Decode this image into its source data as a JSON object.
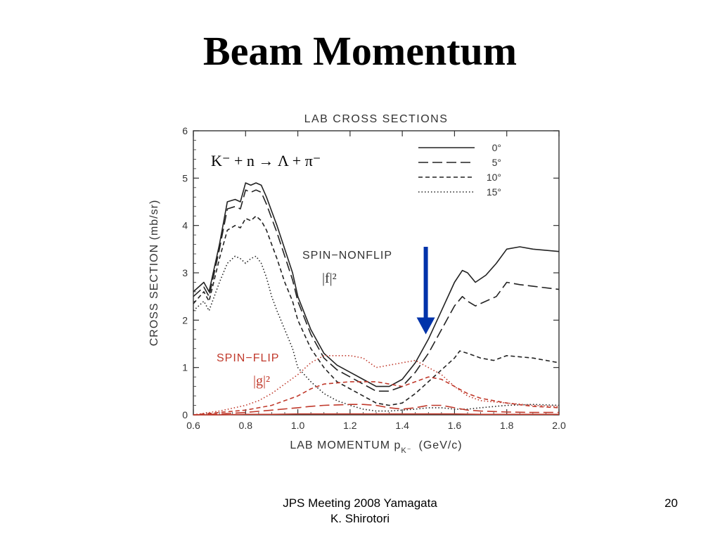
{
  "slide": {
    "title": "Beam Momentum",
    "footer_line1": "JPS Meeting 2008 Yamagata",
    "footer_line2": "K. Shirotori",
    "page_number": "20"
  },
  "chart_data": {
    "type": "line",
    "title": "LAB CROSS SECTIONS",
    "reaction": "K⁻ + n → Λ + π⁻",
    "xlabel": "LAB MOMENTUM p",
    "xlabel_sub": "K⁻",
    "xlabel_unit": "(GeV/c)",
    "ylabel": "CROSS SECTION (mb/sr)",
    "xlim": [
      0.6,
      2.0
    ],
    "ylim": [
      0,
      6
    ],
    "xticks": [
      0.6,
      0.8,
      1.0,
      1.2,
      1.4,
      1.6,
      1.8,
      2.0
    ],
    "yticks": [
      0,
      1,
      2,
      3,
      4,
      5,
      6
    ],
    "legend_position": "top-right",
    "legend": [
      "0°",
      "5°",
      "10°",
      "15°"
    ],
    "group_labels": {
      "nonflip": "SPIN−NONFLIP",
      "nonflip_sym": "|f|²",
      "flip": "SPIN−FLIP",
      "flip_sym": "|g|²"
    },
    "marker": {
      "x": 1.49,
      "y_from": 3.55,
      "y_to": 1.7,
      "color": "#0033aa"
    },
    "colors": {
      "nonflip": "#222222",
      "flip": "#c0392b"
    },
    "series": [
      {
        "name": "0°",
        "group": "nonflip",
        "dash": "solid",
        "x": [
          0.6,
          0.64,
          0.66,
          0.7,
          0.73,
          0.76,
          0.78,
          0.8,
          0.82,
          0.84,
          0.86,
          0.88,
          0.9,
          0.92,
          0.95,
          0.98,
          1.0,
          1.05,
          1.1,
          1.15,
          1.2,
          1.25,
          1.3,
          1.35,
          1.4,
          1.45,
          1.5,
          1.55,
          1.6,
          1.63,
          1.65,
          1.68,
          1.72,
          1.76,
          1.8,
          1.85,
          1.9,
          2.0
        ],
        "y": [
          2.6,
          2.8,
          2.6,
          3.6,
          4.5,
          4.55,
          4.5,
          4.9,
          4.85,
          4.9,
          4.85,
          4.6,
          4.3,
          4.0,
          3.5,
          3.0,
          2.5,
          1.8,
          1.3,
          1.05,
          0.9,
          0.75,
          0.6,
          0.6,
          0.75,
          1.1,
          1.6,
          2.2,
          2.8,
          3.05,
          3.0,
          2.8,
          2.95,
          3.2,
          3.5,
          3.55,
          3.5,
          3.45
        ]
      },
      {
        "name": "5°",
        "group": "nonflip",
        "dash": "long",
        "x": [
          0.6,
          0.64,
          0.66,
          0.7,
          0.73,
          0.76,
          0.78,
          0.8,
          0.82,
          0.84,
          0.86,
          0.88,
          0.9,
          0.92,
          0.95,
          0.98,
          1.0,
          1.05,
          1.1,
          1.15,
          1.2,
          1.25,
          1.3,
          1.35,
          1.4,
          1.45,
          1.5,
          1.55,
          1.6,
          1.63,
          1.65,
          1.68,
          1.72,
          1.76,
          1.8,
          1.85,
          2.0
        ],
        "y": [
          2.5,
          2.7,
          2.5,
          3.5,
          4.35,
          4.4,
          4.35,
          4.75,
          4.7,
          4.75,
          4.7,
          4.45,
          4.15,
          3.85,
          3.35,
          2.85,
          2.4,
          1.7,
          1.2,
          0.95,
          0.8,
          0.65,
          0.5,
          0.5,
          0.6,
          0.9,
          1.3,
          1.8,
          2.3,
          2.5,
          2.4,
          2.3,
          2.4,
          2.5,
          2.8,
          2.75,
          2.65
        ]
      },
      {
        "name": "10°",
        "group": "nonflip",
        "dash": "medium",
        "x": [
          0.6,
          0.64,
          0.66,
          0.7,
          0.73,
          0.76,
          0.78,
          0.8,
          0.82,
          0.84,
          0.86,
          0.88,
          0.9,
          0.92,
          0.95,
          0.98,
          1.0,
          1.05,
          1.1,
          1.15,
          1.2,
          1.25,
          1.3,
          1.35,
          1.4,
          1.45,
          1.5,
          1.55,
          1.6,
          1.62,
          1.65,
          1.7,
          1.75,
          1.8,
          1.9,
          2.0
        ],
        "y": [
          2.35,
          2.6,
          2.4,
          3.3,
          3.9,
          4.0,
          3.95,
          4.15,
          4.1,
          4.2,
          4.1,
          3.9,
          3.6,
          3.3,
          2.8,
          2.4,
          2.0,
          1.4,
          1.0,
          0.7,
          0.55,
          0.4,
          0.25,
          0.2,
          0.25,
          0.45,
          0.7,
          0.95,
          1.2,
          1.35,
          1.3,
          1.2,
          1.15,
          1.25,
          1.2,
          1.1
        ]
      },
      {
        "name": "15°",
        "group": "nonflip",
        "dash": "dotted",
        "x": [
          0.6,
          0.64,
          0.66,
          0.7,
          0.73,
          0.76,
          0.78,
          0.8,
          0.82,
          0.84,
          0.86,
          0.88,
          0.9,
          0.92,
          0.95,
          0.98,
          1.0,
          1.05,
          1.1,
          1.15,
          1.2,
          1.25,
          1.3,
          1.35,
          1.4,
          1.45,
          1.5,
          1.55,
          1.6,
          1.65,
          1.7,
          1.8,
          1.9,
          2.0
        ],
        "y": [
          2.2,
          2.4,
          2.2,
          2.8,
          3.2,
          3.35,
          3.3,
          3.2,
          3.3,
          3.35,
          3.2,
          2.9,
          2.5,
          2.2,
          1.8,
          1.4,
          1.0,
          0.7,
          0.45,
          0.3,
          0.2,
          0.12,
          0.08,
          0.08,
          0.1,
          0.12,
          0.15,
          0.15,
          0.12,
          0.12,
          0.15,
          0.2,
          0.22,
          0.2
        ]
      },
      {
        "name": "0°",
        "group": "flip",
        "dash": "solid",
        "x": [
          0.6,
          0.7,
          0.8,
          0.9,
          1.0,
          1.1,
          1.2,
          1.3,
          1.4,
          1.5,
          1.6,
          1.7,
          1.8,
          1.9,
          2.0
        ],
        "y": [
          0,
          0,
          0.01,
          0.01,
          0.02,
          0.02,
          0.02,
          0.02,
          0.02,
          0.02,
          0.02,
          0.01,
          0.01,
          0.01,
          0.01
        ]
      },
      {
        "name": "5°",
        "group": "flip",
        "dash": "long",
        "x": [
          0.6,
          0.7,
          0.8,
          0.9,
          1.0,
          1.05,
          1.1,
          1.2,
          1.25,
          1.3,
          1.35,
          1.4,
          1.45,
          1.5,
          1.55,
          1.6,
          1.65,
          1.7,
          1.8,
          1.9,
          2.0
        ],
        "y": [
          0,
          0.02,
          0.05,
          0.1,
          0.15,
          0.18,
          0.2,
          0.22,
          0.22,
          0.2,
          0.15,
          0.12,
          0.15,
          0.2,
          0.2,
          0.15,
          0.1,
          0.08,
          0.06,
          0.05,
          0.05
        ]
      },
      {
        "name": "10°",
        "group": "flip",
        "dash": "medium",
        "x": [
          0.6,
          0.7,
          0.8,
          0.85,
          0.9,
          0.95,
          1.0,
          1.05,
          1.1,
          1.2,
          1.3,
          1.35,
          1.4,
          1.45,
          1.5,
          1.55,
          1.6,
          1.65,
          1.7,
          1.8,
          1.9,
          2.0
        ],
        "y": [
          0,
          0.05,
          0.1,
          0.15,
          0.2,
          0.3,
          0.4,
          0.55,
          0.65,
          0.7,
          0.7,
          0.65,
          0.6,
          0.7,
          0.8,
          0.75,
          0.6,
          0.45,
          0.35,
          0.25,
          0.18,
          0.15
        ]
      },
      {
        "name": "15°",
        "group": "flip",
        "dash": "dotted",
        "x": [
          0.6,
          0.7,
          0.8,
          0.85,
          0.9,
          0.95,
          1.0,
          1.05,
          1.1,
          1.15,
          1.2,
          1.25,
          1.3,
          1.35,
          1.4,
          1.45,
          1.5,
          1.55,
          1.6,
          1.65,
          1.7,
          1.8,
          1.9,
          2.0
        ],
        "y": [
          0,
          0.08,
          0.2,
          0.3,
          0.45,
          0.65,
          0.85,
          1.1,
          1.25,
          1.25,
          1.25,
          1.2,
          1.0,
          1.05,
          1.1,
          1.15,
          1.0,
          0.85,
          0.6,
          0.4,
          0.3,
          0.25,
          0.2,
          0.18
        ]
      }
    ]
  }
}
